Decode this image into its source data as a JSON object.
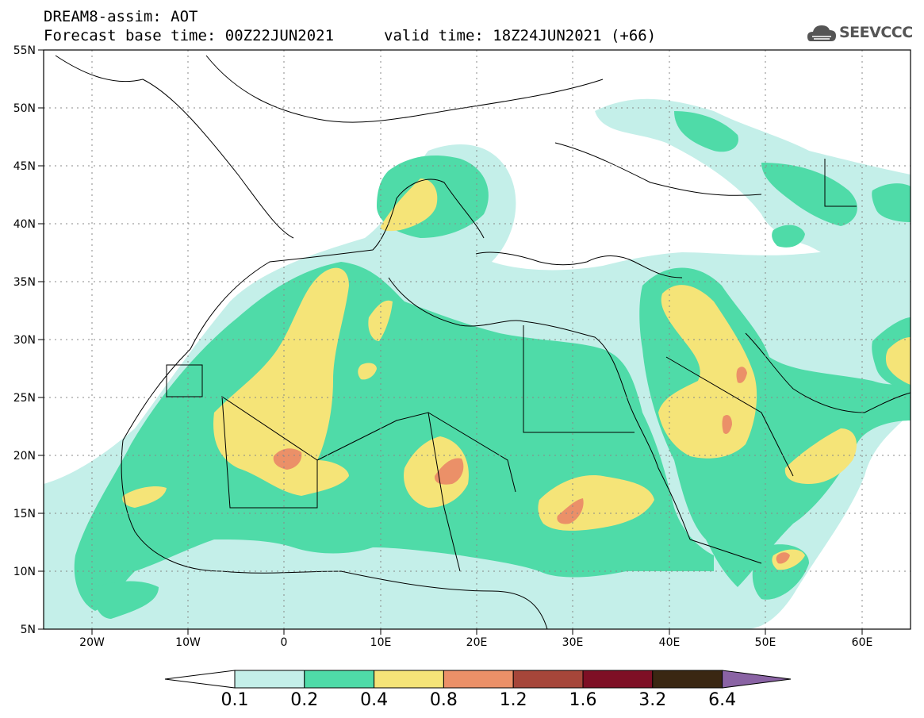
{
  "header": {
    "line1": "DREAM8-assim: AOT",
    "line2": "Forecast base time: 00Z22JUN2021",
    "line3": "valid time: 18Z24JUN2021 (+66)"
  },
  "logo": {
    "text": "SEEVCCC",
    "icon": "cloud-logo-icon"
  },
  "map": {
    "lon_range": [
      -25,
      65
    ],
    "lat_range": [
      5,
      55
    ],
    "lon_ticks": [
      "20W",
      "10W",
      "0",
      "10E",
      "20E",
      "30E",
      "40E",
      "50E",
      "60E"
    ],
    "lat_ticks": [
      "55N",
      "50N",
      "45N",
      "40N",
      "35N",
      "30N",
      "25N",
      "20N",
      "15N",
      "10N",
      "5N"
    ],
    "grid": "dotted"
  },
  "colorbar": {
    "labels": [
      "0.1",
      "0.2",
      "0.4",
      "0.8",
      "1.2",
      "1.6",
      "3.2",
      "6.4"
    ],
    "colors": [
      "#ffffff",
      "#c4efe9",
      "#4fdba8",
      "#f5e478",
      "#eb9068",
      "#a6463a",
      "#7e0f25",
      "#3a2712",
      "#8a63a4"
    ]
  }
}
